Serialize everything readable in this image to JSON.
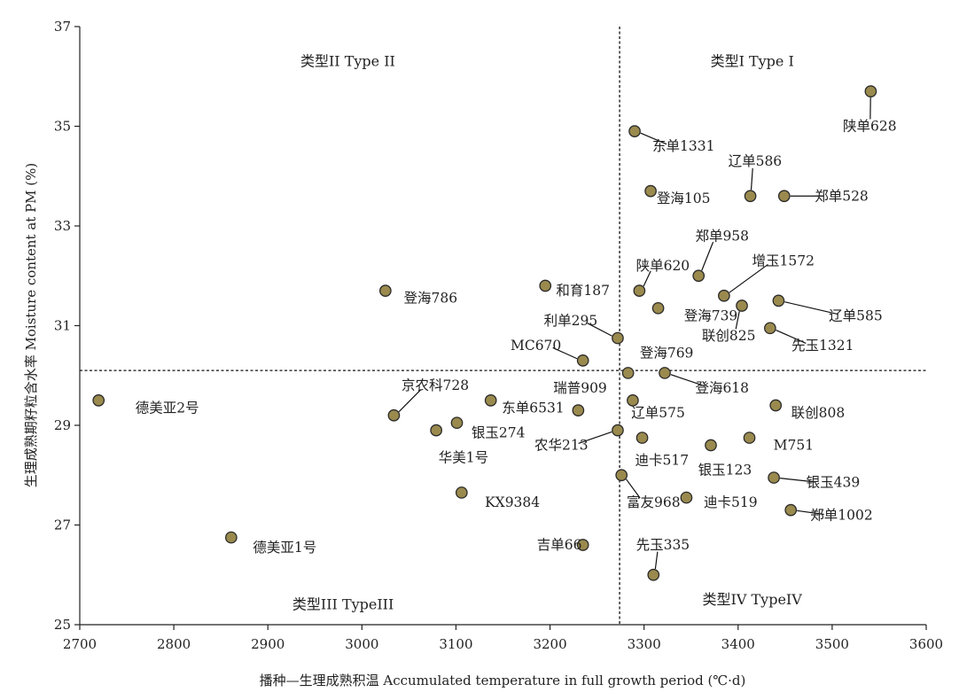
{
  "chart_data": {
    "type": "scatter",
    "xlabel": "播种—生理成熟积温 Accumulated temperature in full growth period (℃·d)",
    "ylabel": "生理成熟期籽粒含水率 Moisture content at PM (%)",
    "xlim": [
      2700,
      3600
    ],
    "ylim": [
      25,
      37
    ],
    "xticks": [
      2700,
      2800,
      2900,
      3000,
      3100,
      3200,
      3300,
      3400,
      3500,
      3600
    ],
    "yticks": [
      25,
      27,
      29,
      31,
      33,
      35,
      37
    ],
    "grid": false,
    "reference_lines": {
      "x": 3274,
      "y": 30.1
    },
    "quadrants": [
      {
        "label": "类型I Type I",
        "x": 3415,
        "y": 36.3
      },
      {
        "label": "类型II Type II",
        "x": 2985,
        "y": 36.3
      },
      {
        "label": "类型III TypeIII",
        "x": 2980,
        "y": 25.4
      },
      {
        "label": "类型IV TypeIV",
        "x": 3415,
        "y": 25.5
      }
    ],
    "marker_color": "#9a8a4e",
    "marker_edge": "#2a2a2a",
    "points": [
      {
        "label": "陕单628",
        "x": 3541,
        "y": 35.7,
        "lx": 3540,
        "ly": 35.0,
        "leader": true
      },
      {
        "label": "东单1331",
        "x": 3290,
        "y": 34.9,
        "lx": 3342,
        "ly": 34.6,
        "leader": true
      },
      {
        "label": "辽单586",
        "x": 3413,
        "y": 33.6,
        "lx": 3418,
        "ly": 34.3,
        "leader": true
      },
      {
        "label": "郑单528",
        "x": 3449,
        "y": 33.6,
        "lx": 3510,
        "ly": 33.6,
        "leader": true
      },
      {
        "label": "登海105",
        "x": 3307,
        "y": 33.7,
        "lx": 3342,
        "ly": 33.55,
        "leader": false
      },
      {
        "label": "郑单958",
        "x": 3358,
        "y": 32.0,
        "lx": 3383,
        "ly": 32.8,
        "leader": true
      },
      {
        "label": "增玉1572",
        "x": 3385,
        "y": 31.6,
        "lx": 3448,
        "ly": 32.3,
        "leader": true
      },
      {
        "label": "陕单620",
        "x": 3295,
        "y": 31.7,
        "lx": 3320,
        "ly": 32.2,
        "leader": true
      },
      {
        "label": "登海739",
        "x": 3315,
        "y": 31.35,
        "lx": 3371,
        "ly": 31.2,
        "leader": false
      },
      {
        "label": "联创825",
        "x": 3404,
        "y": 31.4,
        "lx": 3390,
        "ly": 30.8,
        "leader": true
      },
      {
        "label": "辽单585",
        "x": 3443,
        "y": 31.5,
        "lx": 3525,
        "ly": 31.2,
        "leader": true
      },
      {
        "label": "先玉1321",
        "x": 3434,
        "y": 30.95,
        "lx": 3490,
        "ly": 30.6,
        "leader": true
      },
      {
        "label": "和育187",
        "x": 3195,
        "y": 31.8,
        "lx": 3235,
        "ly": 31.7,
        "leader": false
      },
      {
        "label": "登海786",
        "x": 3025,
        "y": 31.7,
        "lx": 3073,
        "ly": 31.55,
        "leader": false
      },
      {
        "label": "利单295",
        "x": 3272,
        "y": 30.75,
        "lx": 3222,
        "ly": 31.1,
        "leader": true
      },
      {
        "label": "MC670",
        "x": 3235,
        "y": 30.3,
        "lx": 3185,
        "ly": 30.6,
        "leader": true
      },
      {
        "label": "登海769",
        "x": 3283,
        "y": 30.05,
        "lx": 3324,
        "ly": 30.45,
        "leader": false
      },
      {
        "label": "登海618",
        "x": 3322,
        "y": 30.05,
        "lx": 3383,
        "ly": 29.75,
        "leader": true
      },
      {
        "label": "瑞普909",
        "x": 3230,
        "y": 29.3,
        "lx": 3232,
        "ly": 29.75,
        "leader": false
      },
      {
        "label": "京农科728",
        "x": 3034,
        "y": 29.2,
        "lx": 3078,
        "ly": 29.8,
        "leader": true
      },
      {
        "label": "德美亚2号",
        "x": 2720,
        "y": 29.5,
        "lx": 2793,
        "ly": 29.35,
        "leader": false
      },
      {
        "label": "东单6531",
        "x": 3137,
        "y": 29.5,
        "lx": 3182,
        "ly": 29.35,
        "leader": false
      },
      {
        "label": "辽单575",
        "x": 3288,
        "y": 29.5,
        "lx": 3315,
        "ly": 29.25,
        "leader": false
      },
      {
        "label": "联创808",
        "x": 3440,
        "y": 29.4,
        "lx": 3485,
        "ly": 29.25,
        "leader": false
      },
      {
        "label": "银玉274",
        "x": 3101,
        "y": 29.05,
        "lx": 3145,
        "ly": 28.85,
        "leader": false
      },
      {
        "label": "华美1号",
        "x": 3079,
        "y": 28.9,
        "lx": 3108,
        "ly": 28.35,
        "leader": false
      },
      {
        "label": "农华213",
        "x": 3272,
        "y": 28.9,
        "lx": 3212,
        "ly": 28.6,
        "leader": true
      },
      {
        "label": "迪卡517",
        "x": 3298,
        "y": 28.75,
        "lx": 3319,
        "ly": 28.3,
        "leader": false
      },
      {
        "label": "M751",
        "x": 3412,
        "y": 28.75,
        "lx": 3459,
        "ly": 28.6,
        "leader": false
      },
      {
        "label": "银玉123",
        "x": 3371,
        "y": 28.6,
        "lx": 3386,
        "ly": 28.1,
        "leader": false
      },
      {
        "label": "银玉439",
        "x": 3438,
        "y": 27.95,
        "lx": 3501,
        "ly": 27.85,
        "leader": true
      },
      {
        "label": "富友968",
        "x": 3276,
        "y": 28.0,
        "lx": 3310,
        "ly": 27.45,
        "leader": true
      },
      {
        "label": "迪卡519",
        "x": 3345,
        "y": 27.55,
        "lx": 3392,
        "ly": 27.45,
        "leader": false
      },
      {
        "label": "郑单1002",
        "x": 3456,
        "y": 27.3,
        "lx": 3510,
        "ly": 27.2,
        "leader": true
      },
      {
        "label": "KX9384",
        "x": 3106,
        "y": 27.65,
        "lx": 3160,
        "ly": 27.45,
        "leader": false
      },
      {
        "label": "德美亚1号",
        "x": 2861,
        "y": 26.75,
        "lx": 2918,
        "ly": 26.55,
        "leader": false
      },
      {
        "label": "吉单66",
        "x": 3235,
        "y": 26.6,
        "lx": 3210,
        "ly": 26.6,
        "leader": true
      },
      {
        "label": "先玉335",
        "x": 3310,
        "y": 26.0,
        "lx": 3320,
        "ly": 26.6,
        "leader": true
      }
    ]
  }
}
